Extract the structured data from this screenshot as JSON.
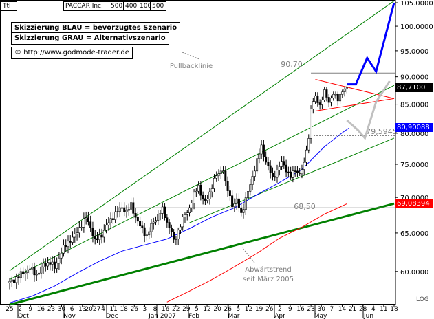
{
  "header": {
    "ticker_label": "Ttl",
    "instrument": "PACCAR Inc.",
    "periods": [
      "500",
      "400",
      "100",
      "500"
    ]
  },
  "notes": {
    "line1": "Skizzierung BLAU = bevorzugtes Szenario",
    "line2": "Skizzierung GRAU = Alternativszenario",
    "copyright_symbol": "©",
    "website": "http://www.godmode-trader.de"
  },
  "annotations": {
    "pullback": "Pullbacklinie",
    "downtrend_line1": "Abwärtstrend",
    "downtrend_line2": "seit März 2005",
    "level_high": "90,70",
    "level_mid": "79,5945",
    "level_low": "68,50"
  },
  "price_tags": {
    "last": "87,7100",
    "blue_ma": "80,90088",
    "red_ma": "69,08394"
  },
  "scale_label": "LOG",
  "colors": {
    "candle": "#000000",
    "trend_channel": "#008000",
    "blue_ma": "#0000ff",
    "red_ma": "#ff0000",
    "scenario_blue": "#0000ff",
    "scenario_grey": "#c0c0c0",
    "triangle": "#ff0000",
    "level_lines": "#808080",
    "last_tag_bg": "#000000",
    "blue_tag_bg": "#0000ff",
    "red_tag_bg": "#ff0000"
  },
  "chart_data": {
    "type": "candlestick",
    "scale": "log",
    "ylim": [
      56,
      105
    ],
    "y_ticks": [
      60,
      65,
      70,
      75,
      80,
      85,
      90,
      95,
      100,
      105
    ],
    "y_tick_labels": [
      "60.0000",
      "65.0000",
      "70.0000",
      "75.0000",
      "80.0000",
      "85.0000",
      "90.0000",
      "95.0000",
      "100.0000",
      "105.0000"
    ],
    "x_tick_labels": [
      "25",
      "2",
      "9",
      "16",
      "23",
      "30",
      "6",
      "13",
      "2027",
      "4",
      "11",
      "18",
      "26",
      "3",
      "8",
      "16",
      "22",
      "29",
      "5",
      "12",
      "20",
      "26",
      "5",
      "12",
      "19",
      "26",
      "2",
      "9",
      "16",
      "23",
      "30",
      "7",
      "14",
      "21",
      "28",
      "4",
      "11",
      "18"
    ],
    "month_labels": [
      "Oct",
      "Nov",
      "Dec",
      "Jan 2007",
      "Feb",
      "Mar",
      "Apr",
      "May",
      "Jun"
    ],
    "price_path": [
      [
        0,
        58.6
      ],
      [
        3,
        59.2
      ],
      [
        6,
        59.8
      ],
      [
        9,
        60.4
      ],
      [
        12,
        59.6
      ],
      [
        15,
        60.8
      ],
      [
        18,
        61.2
      ],
      [
        20,
        60.4
      ],
      [
        23,
        62.5
      ],
      [
        26,
        63.8
      ],
      [
        29,
        64.6
      ],
      [
        32,
        66.2
      ],
      [
        34,
        67.1
      ],
      [
        36,
        65.8
      ],
      [
        38,
        63.9
      ],
      [
        41,
        64.8
      ],
      [
        44,
        66.4
      ],
      [
        47,
        67.7
      ],
      [
        50,
        68.6
      ],
      [
        52,
        67.9
      ],
      [
        54,
        68.9
      ],
      [
        56,
        67.2
      ],
      [
        58,
        65.9
      ],
      [
        61,
        64.6
      ],
      [
        63,
        66.0
      ],
      [
        66,
        67.5
      ],
      [
        68,
        68.2
      ],
      [
        70,
        66.5
      ],
      [
        72,
        65.1
      ],
      [
        73,
        63.8
      ],
      [
        75,
        65.3
      ],
      [
        77,
        66.9
      ],
      [
        80,
        68.5
      ],
      [
        82,
        70.3
      ],
      [
        84,
        71.8
      ],
      [
        85,
        70.5
      ],
      [
        87,
        69.2
      ],
      [
        89,
        70.7
      ],
      [
        91,
        72.6
      ],
      [
        93,
        73.6
      ],
      [
        95,
        74.3
      ],
      [
        96,
        72.0
      ],
      [
        98,
        70.1
      ],
      [
        99,
        68.9
      ],
      [
        101,
        69.5
      ],
      [
        103,
        67.6
      ],
      [
        105,
        69.8
      ],
      [
        107,
        71.8
      ],
      [
        108,
        73.1
      ],
      [
        110,
        75.6
      ],
      [
        112,
        77.8
      ],
      [
        113,
        76.4
      ],
      [
        115,
        74.6
      ],
      [
        117,
        72.8
      ],
      [
        119,
        74.0
      ],
      [
        121,
        75.3
      ],
      [
        123,
        74.2
      ],
      [
        125,
        73.1
      ],
      [
        127,
        74.1
      ],
      [
        129,
        73.6
      ],
      [
        131,
        74.9
      ],
      [
        132,
        77.6
      ],
      [
        133,
        79.1
      ],
      [
        134,
        84.3
      ],
      [
        136,
        86.3
      ],
      [
        138,
        84.8
      ],
      [
        140,
        87.2
      ],
      [
        142,
        85.4
      ],
      [
        144,
        86.9
      ],
      [
        146,
        85.8
      ],
      [
        148,
        87.5
      ],
      [
        150,
        87.71
      ]
    ],
    "moving_average_blue": [
      [
        0,
        56.2
      ],
      [
        10,
        57.0
      ],
      [
        20,
        58.2
      ],
      [
        30,
        59.8
      ],
      [
        40,
        61.3
      ],
      [
        50,
        62.6
      ],
      [
        60,
        63.4
      ],
      [
        70,
        64.2
      ],
      [
        80,
        65.6
      ],
      [
        90,
        67.2
      ],
      [
        100,
        68.5
      ],
      [
        110,
        70.4
      ],
      [
        120,
        72.2
      ],
      [
        130,
        74.2
      ],
      [
        140,
        77.8
      ],
      [
        148,
        80.1
      ],
      [
        151,
        80.9
      ]
    ],
    "moving_average_red": [
      [
        70,
        56.3
      ],
      [
        80,
        57.6
      ],
      [
        90,
        59.0
      ],
      [
        100,
        60.6
      ],
      [
        110,
        62.3
      ],
      [
        120,
        64.3
      ],
      [
        130,
        65.8
      ],
      [
        140,
        67.6
      ],
      [
        150,
        69.08
      ]
    ],
    "scenario_blue": [
      [
        150,
        88.6
      ],
      [
        154,
        88.6
      ],
      [
        159,
        93.6
      ],
      [
        163,
        91.0
      ],
      [
        171,
        105.0
      ]
    ],
    "scenario_grey": [
      [
        150,
        82.2
      ],
      [
        155,
        80.5
      ],
      [
        158,
        79.2
      ],
      [
        163,
        85.4
      ],
      [
        169,
        89.2
      ]
    ],
    "levels": [
      90.7,
      79.5945,
      68.5
    ]
  }
}
